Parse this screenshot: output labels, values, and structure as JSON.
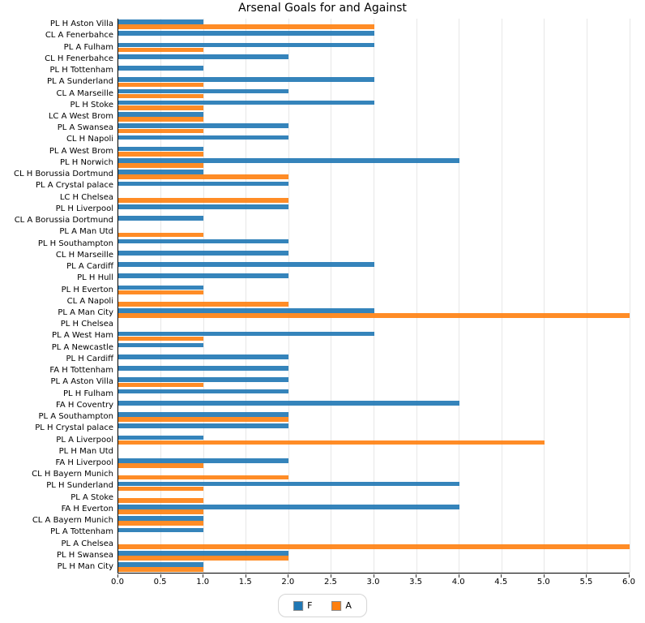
{
  "chart_data": {
    "type": "bar",
    "orientation": "horizontal",
    "title": "Arsenal Goals for and Against",
    "categories": [
      "PL H Aston Villa",
      "CL A Fenerbahce",
      "PL A Fulham",
      "CL H Fenerbahce",
      "PL H Tottenham",
      "PL A Sunderland",
      "CL A Marseille",
      "PL H Stoke",
      "LC A West Brom",
      "PL A Swansea",
      "CL H Napoli",
      "PL A West Brom",
      "PL H Norwich",
      "CL H Borussia Dortmund",
      "PL A Crystal palace",
      "LC H Chelsea",
      "PL H Liverpool",
      "CL A Borussia Dortmund",
      "PL A Man Utd",
      "PL H Southampton",
      "CL H Marseille",
      "PL A Cardiff",
      "PL H Hull",
      "PL H Everton",
      "CL A Napoli",
      "PL A Man City",
      "PL H Chelsea",
      "PL A West Ham",
      "PL A Newcastle",
      "PL H Cardiff",
      "FA H Tottenham",
      "PL A Aston Villa",
      "PL H Fulham",
      "FA H Coventry",
      "PL A Southampton",
      "PL H Crystal palace",
      "PL A Liverpool",
      "PL H Man Utd",
      "FA H Liverpool",
      "CL H Bayern Munich",
      "PL H Sunderland",
      "PL A Stoke",
      "FA H Everton",
      "CL A Bayern Munich",
      "PL A Tottenham",
      "PL A Chelsea",
      "PL H Swansea",
      "PL H Man City"
    ],
    "series": [
      {
        "name": "F",
        "color": "#1f77b4",
        "values": [
          1,
          3,
          3,
          2,
          1,
          3,
          2,
          3,
          1,
          2,
          2,
          1,
          4,
          1,
          2,
          0,
          2,
          1,
          0,
          2,
          2,
          3,
          2,
          1,
          0,
          3,
          0,
          3,
          1,
          2,
          2,
          2,
          2,
          4,
          2,
          2,
          1,
          0,
          2,
          0,
          4,
          0,
          4,
          1,
          1,
          0,
          2,
          1
        ]
      },
      {
        "name": "A",
        "color": "#ff7f0e",
        "values": [
          3,
          0,
          1,
          0,
          0,
          1,
          1,
          1,
          1,
          1,
          0,
          1,
          1,
          2,
          0,
          2,
          0,
          0,
          1,
          0,
          0,
          0,
          0,
          1,
          2,
          6,
          0,
          1,
          0,
          0,
          0,
          1,
          0,
          0,
          2,
          0,
          5,
          0,
          1,
          2,
          1,
          1,
          1,
          1,
          0,
          6,
          2,
          1
        ]
      }
    ],
    "xlim": [
      0,
      6
    ],
    "xticks": [
      "0.0",
      "0.5",
      "1.0",
      "1.5",
      "2.0",
      "2.5",
      "3.0",
      "3.5",
      "4.0",
      "4.5",
      "5.0",
      "5.5",
      "6.0"
    ],
    "grid": true,
    "legend_position": "bottom-center"
  }
}
